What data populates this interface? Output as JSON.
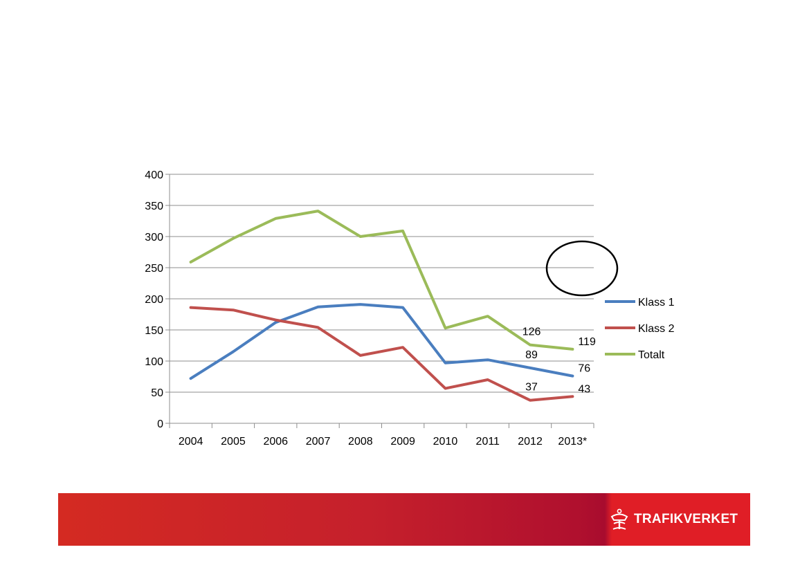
{
  "chart_data": {
    "type": "line",
    "categories": [
      "2004",
      "2005",
      "2006",
      "2007",
      "2008",
      "2009",
      "2010",
      "2011",
      "2012",
      "2013*"
    ],
    "ylim": [
      0,
      400
    ],
    "yticks": [
      0,
      50,
      100,
      150,
      200,
      250,
      300,
      350,
      400
    ],
    "grid": true,
    "legend": "right",
    "series": [
      {
        "name": "Klass 1",
        "color": "#4a7ebf",
        "values": [
          72,
          115,
          162,
          187,
          191,
          186,
          97,
          102,
          89,
          76
        ]
      },
      {
        "name": "Klass 2",
        "color": "#c0504d",
        "values": [
          186,
          182,
          166,
          154,
          109,
          122,
          56,
          70,
          37,
          43
        ]
      },
      {
        "name": "Totalt",
        "color": "#9bbb59",
        "values": [
          259,
          297,
          329,
          341,
          300,
          309,
          153,
          172,
          126,
          119
        ]
      }
    ],
    "data_labels": [
      {
        "series": 2,
        "index": 8,
        "text": "126"
      },
      {
        "series": 2,
        "index": 9,
        "text": "119"
      },
      {
        "series": 0,
        "index": 8,
        "text": "89"
      },
      {
        "series": 0,
        "index": 9,
        "text": "76"
      },
      {
        "series": 1,
        "index": 8,
        "text": "37"
      },
      {
        "series": 1,
        "index": 9,
        "text": "43"
      }
    ]
  },
  "footer": {
    "logo_text": "TRAFIKVERKET"
  }
}
